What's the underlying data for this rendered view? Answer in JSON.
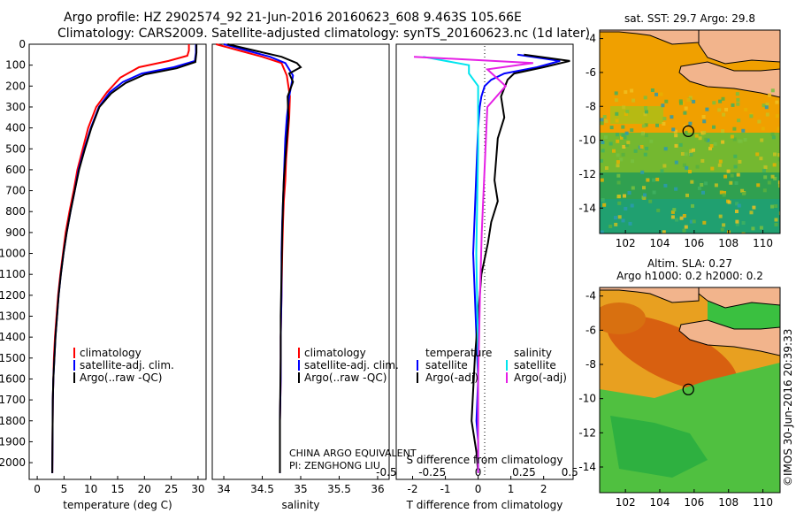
{
  "header": {
    "line1": "Argo profile: HZ 2902574_92 21-Jun-2016 20160623_608 9.463S 105.66E",
    "line2": "Climatology: CARS2009. Satellite-adjusted climatology: synTS_20160623.nc (1d later)"
  },
  "colors": {
    "climatology": "#ff0000",
    "satellite": "#0000ff",
    "argo": "#000000",
    "cyan": "#00e5ee",
    "magenta": "#e520e5",
    "land": "#f2b48c",
    "sst_warm": "#f0a000",
    "sst_cool": "#30a050",
    "sla_high": "#d86010",
    "sla_low": "#40c040"
  },
  "chart_data": [
    {
      "type": "line",
      "name": "temperature",
      "xlabel": "temperature (deg C)",
      "ylim": [
        2080,
        0
      ],
      "xlim": [
        -1.5,
        31.5
      ],
      "xticks": [
        "0",
        "5",
        "10",
        "15",
        "20",
        "25",
        "30"
      ],
      "yticks": [
        "0",
        "100",
        "200",
        "300",
        "400",
        "500",
        "600",
        "700",
        "800",
        "900",
        "1000",
        "1100",
        "1200",
        "1300",
        "1400",
        "1500",
        "1600",
        "1700",
        "1800",
        "1900",
        "2000"
      ],
      "legend": [
        "climatology",
        "satellite-adj. clim.",
        "Argo(..raw -QC)"
      ],
      "series": [
        {
          "name": "climatology",
          "x": [
            28.3,
            28.3,
            28.0,
            24.5,
            19.0,
            15.5,
            13.0,
            11.0,
            9.5,
            8.5,
            7.5,
            6.8,
            6.0,
            5.3,
            4.8,
            4.3,
            3.9,
            3.6,
            3.3,
            3.1,
            3.0,
            2.9,
            2.8
          ],
          "y": [
            0,
            30,
            55,
            80,
            110,
            160,
            230,
            300,
            400,
            500,
            600,
            700,
            800,
            900,
            1000,
            1100,
            1200,
            1300,
            1400,
            1500,
            1600,
            1700,
            2050
          ]
        },
        {
          "name": "satellite-adj. clim.",
          "x": [
            29.6,
            29.6,
            29.4,
            25.5,
            19.5,
            16.0,
            13.5,
            11.5,
            10.0,
            8.8,
            7.7,
            7.0,
            6.2,
            5.5,
            4.9,
            4.4,
            4.0,
            3.7,
            3.4,
            3.2,
            3.0,
            2.9,
            2.8
          ],
          "y": [
            0,
            40,
            80,
            110,
            140,
            180,
            230,
            300,
            400,
            500,
            600,
            700,
            800,
            900,
            1000,
            1100,
            1200,
            1300,
            1400,
            1500,
            1600,
            1700,
            2050
          ]
        },
        {
          "name": "Argo(..raw -QC)",
          "x": [
            29.7,
            29.7,
            29.5,
            26.0,
            20.0,
            16.5,
            13.8,
            11.6,
            10.1,
            8.9,
            7.8,
            7.0,
            6.2,
            5.5,
            4.9,
            4.4,
            4.0,
            3.7,
            3.4,
            3.2,
            3.0,
            2.9,
            2.8
          ],
          "y": [
            0,
            40,
            85,
            115,
            145,
            185,
            235,
            300,
            400,
            500,
            600,
            700,
            800,
            900,
            1000,
            1100,
            1200,
            1300,
            1400,
            1500,
            1600,
            1700,
            2050
          ]
        }
      ]
    },
    {
      "type": "line",
      "name": "salinity",
      "xlabel": "salinity",
      "ylim": [
        2080,
        0
      ],
      "xlim": [
        33.85,
        36.15
      ],
      "xticks": [
        "34",
        "34.5",
        "35",
        "35.5",
        "36"
      ],
      "legend": [
        "climatology",
        "satellite-adj. clim.",
        "Argo(..raw -QC)"
      ],
      "annotation": [
        "CHINA ARGO EQUIVALENT",
        "PI: ZENGHONG LIU"
      ],
      "series": [
        {
          "name": "climatology",
          "x": [
            33.9,
            34.2,
            34.5,
            34.75,
            34.82,
            34.86,
            34.85,
            34.83,
            34.81,
            34.8,
            34.78,
            34.77,
            34.76,
            34.75,
            34.74,
            34.74,
            34.73,
            34.73
          ],
          "y": [
            0,
            30,
            60,
            90,
            150,
            250,
            350,
            450,
            550,
            650,
            750,
            850,
            1000,
            1200,
            1400,
            1600,
            1800,
            2050
          ]
        },
        {
          "name": "satellite-adj. clim.",
          "x": [
            34.0,
            34.3,
            34.6,
            34.8,
            34.9,
            34.85,
            34.82,
            34.8,
            34.79,
            34.78,
            34.77,
            34.76,
            34.75,
            34.75,
            34.74,
            34.74,
            34.73,
            34.73
          ],
          "y": [
            0,
            30,
            60,
            90,
            150,
            250,
            350,
            450,
            550,
            650,
            750,
            850,
            1000,
            1200,
            1400,
            1600,
            1800,
            2050
          ]
        },
        {
          "name": "Argo(..raw -QC)",
          "x": [
            34.05,
            34.4,
            34.75,
            34.95,
            35.0,
            34.85,
            34.9,
            34.83,
            34.84,
            34.82,
            34.8,
            34.78,
            34.77,
            34.76,
            34.75,
            34.74,
            34.74,
            34.73,
            34.73
          ],
          "y": [
            0,
            30,
            60,
            90,
            110,
            140,
            180,
            250,
            350,
            450,
            550,
            650,
            750,
            900,
            1100,
            1300,
            1500,
            1800,
            2050
          ]
        }
      ]
    },
    {
      "type": "line",
      "name": "difference",
      "xlabel_top": "S difference from climatology",
      "xlabel": "T difference from climatology",
      "ylim": [
        2080,
        0
      ],
      "xlim": [
        -2.5,
        2.9
      ],
      "xticks_T": [
        "-2",
        "-1",
        "0",
        "1",
        "2"
      ],
      "xticks_S": [
        "-0.5",
        "-0.25",
        "0",
        "0.25",
        "0.5"
      ],
      "legend_T_title": "temperature",
      "legend_S_title": "salinity",
      "legend": [
        "satellite",
        "Argo(-adj)",
        "satellite",
        "Argo(-adj)"
      ],
      "series": [
        {
          "name": "temperature satellite",
          "x": [
            1.2,
            2.5,
            1.8,
            0.8,
            0.4,
            0.2,
            0.1,
            0.05,
            0.0,
            -0.05,
            -0.1,
            -0.15,
            -0.1,
            -0.05,
            0.0,
            -0.05,
            0.0,
            0.0
          ],
          "y": [
            50,
            80,
            110,
            140,
            170,
            200,
            250,
            300,
            400,
            600,
            800,
            1000,
            1200,
            1400,
            1600,
            1800,
            1900,
            2050
          ]
        },
        {
          "name": "temperature Argo(-adj)",
          "x": [
            1.4,
            2.8,
            2.0,
            1.1,
            0.9,
            0.7,
            0.8,
            0.6,
            0.55,
            0.5,
            0.6,
            0.4,
            0.3,
            0.1,
            0.0,
            -0.1,
            -0.2,
            -0.05,
            0.0
          ],
          "y": [
            50,
            80,
            110,
            140,
            170,
            250,
            350,
            450,
            550,
            650,
            750,
            850,
            950,
            1100,
            1300,
            1500,
            1800,
            1950,
            2050
          ]
        },
        {
          "name": "salinity satellite",
          "x": [
            -0.3,
            -0.05,
            -0.05,
            0.0,
            0.0,
            -0.01,
            0.0,
            0.0,
            0.0
          ],
          "y": [
            60,
            100,
            140,
            200,
            500,
            1000,
            1500,
            1800,
            2050
          ]
        },
        {
          "name": "salinity Argo(-adj)",
          "x": [
            -0.35,
            0.3,
            0.05,
            0.15,
            0.05,
            0.04,
            0.03,
            0.02,
            0.01,
            0.0,
            0.0
          ],
          "y": [
            60,
            90,
            120,
            200,
            300,
            500,
            700,
            900,
            1200,
            1600,
            2050
          ]
        }
      ]
    },
    {
      "type": "heatmap",
      "name": "sst_map",
      "title": "sat. SST: 29.7 Argo: 29.8",
      "xlim": [
        100.5,
        111
      ],
      "ylim": [
        -15.5,
        -3.5
      ],
      "xticks": [
        "102",
        "104",
        "106",
        "108",
        "110"
      ],
      "yticks": [
        "-4",
        "-6",
        "-8",
        "-10",
        "-12",
        "-14"
      ],
      "float_position": {
        "lon": 105.66,
        "lat": -9.463
      }
    },
    {
      "type": "heatmap",
      "name": "sla_map",
      "title": "Altim. SLA: 0.27",
      "subtitle": "Argo h1000: 0.2 h2000: 0.2",
      "xlim": [
        100.5,
        111
      ],
      "ylim": [
        -15.5,
        -3.5
      ],
      "xticks": [
        "102",
        "104",
        "106",
        "108",
        "110"
      ],
      "yticks": [
        "-4",
        "-6",
        "-8",
        "-10",
        "-12",
        "-14"
      ],
      "float_position": {
        "lon": 105.66,
        "lat": -9.463
      }
    }
  ],
  "footer": {
    "credit": "©IMOS 30-Jun-2016 20:39:33"
  }
}
